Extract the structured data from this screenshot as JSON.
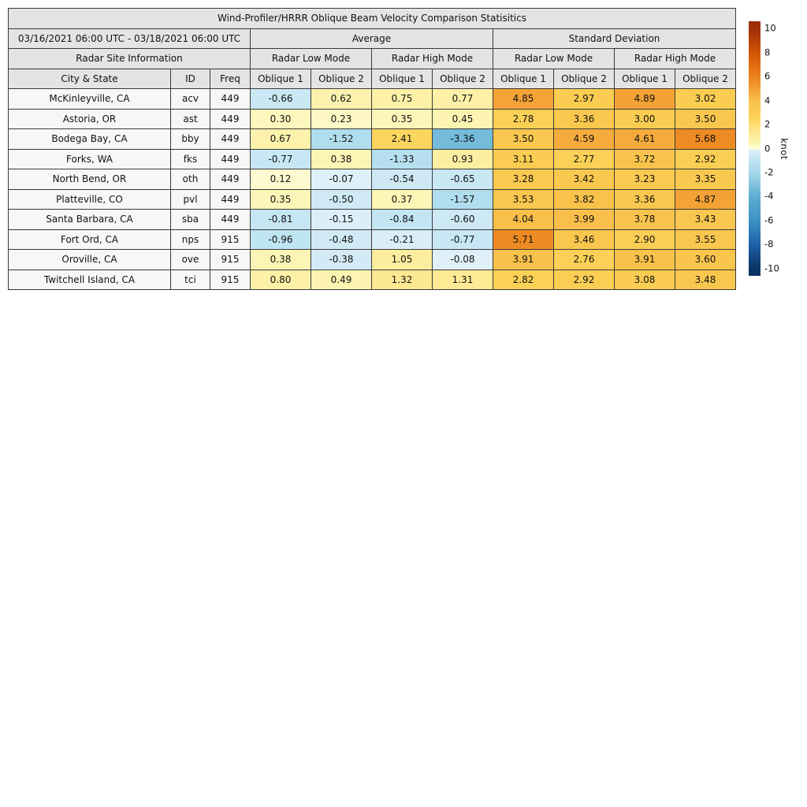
{
  "colors": {
    "header_bg": "#e4e4e4",
    "label_bg": "#f7f7f7",
    "border": "#3a3a3a",
    "positive_max": "#9e2e06",
    "negative_max": "#0b3464",
    "zero_positive": "#fffcdc",
    "zero_negative": "#e2f2f9"
  },
  "chart_data": {
    "type": "heatmap-table",
    "title": "Wind-Profiler/HRRR Oblique Beam Velocity Comparison Statisitics",
    "date_range": "03/16/2021 06:00 UTC - 03/18/2021 06:00 UTC",
    "section_headers": {
      "site_info": "Radar Site Information",
      "average": "Average",
      "std_dev": "Standard Deviation"
    },
    "mode_headers": [
      "Radar Low Mode",
      "Radar High Mode",
      "Radar Low Mode",
      "Radar High Mode"
    ],
    "column_headers": {
      "city": "City & State",
      "id": "ID",
      "freq": "Freq"
    },
    "oblique_headers": [
      "Oblique 1",
      "Oblique 2"
    ],
    "value_columns": [
      "Average Radar Low Mode Oblique 1",
      "Average Radar Low Mode Oblique 2",
      "Average Radar High Mode Oblique 1",
      "Average Radar High Mode Oblique 2",
      "Standard Deviation Radar Low Mode Oblique 1",
      "Standard Deviation Radar Low Mode Oblique 2",
      "Standard Deviation Radar High Mode Oblique 1",
      "Standard Deviation Radar High Mode Oblique 2"
    ],
    "units": "knot",
    "rows": [
      {
        "city": "McKinleyville, CA",
        "id": "acv",
        "freq": 449,
        "values": [
          -0.66,
          0.62,
          0.75,
          0.77,
          4.85,
          2.97,
          4.89,
          3.02
        ]
      },
      {
        "city": "Astoria, OR",
        "id": "ast",
        "freq": 449,
        "values": [
          0.3,
          0.23,
          0.35,
          0.45,
          2.78,
          3.36,
          3.0,
          3.5
        ]
      },
      {
        "city": "Bodega Bay, CA",
        "id": "bby",
        "freq": 449,
        "values": [
          0.67,
          -1.52,
          2.41,
          -3.36,
          3.5,
          4.59,
          4.61,
          5.68
        ]
      },
      {
        "city": "Forks, WA",
        "id": "fks",
        "freq": 449,
        "values": [
          -0.77,
          0.38,
          -1.33,
          0.93,
          3.11,
          2.77,
          3.72,
          2.92
        ]
      },
      {
        "city": "North Bend, OR",
        "id": "oth",
        "freq": 449,
        "values": [
          0.12,
          -0.07,
          -0.54,
          -0.65,
          3.28,
          3.42,
          3.23,
          3.35
        ]
      },
      {
        "city": "Platteville, CO",
        "id": "pvl",
        "freq": 449,
        "values": [
          0.35,
          -0.5,
          0.37,
          -1.57,
          3.53,
          3.82,
          3.36,
          4.87
        ]
      },
      {
        "city": "Santa Barbara, CA",
        "id": "sba",
        "freq": 449,
        "values": [
          -0.81,
          -0.15,
          -0.84,
          -0.6,
          4.04,
          3.99,
          3.78,
          3.43
        ]
      },
      {
        "city": "Fort Ord, CA",
        "id": "nps",
        "freq": 915,
        "values": [
          -0.96,
          -0.48,
          -0.21,
          -0.77,
          5.71,
          3.46,
          2.9,
          3.55
        ]
      },
      {
        "city": "Oroville, CA",
        "id": "ove",
        "freq": 915,
        "values": [
          0.38,
          -0.38,
          1.05,
          -0.08,
          3.91,
          2.76,
          3.91,
          3.6
        ]
      },
      {
        "city": "Twitchell Island, CA",
        "id": "tci",
        "freq": 915,
        "values": [
          0.8,
          0.49,
          1.32,
          1.31,
          2.82,
          2.92,
          3.08,
          3.48
        ]
      }
    ],
    "colorbar": {
      "label": "knot",
      "ticks": [
        10,
        8,
        6,
        4,
        2,
        0,
        -2,
        -4,
        -6,
        -8,
        -10
      ],
      "vmin": -10,
      "vmax": 10,
      "neg_stops": [
        [
          -10,
          "#0b3464"
        ],
        [
          -8,
          "#1d61a7"
        ],
        [
          -6,
          "#3c92c6"
        ],
        [
          -4,
          "#5facd0"
        ],
        [
          -3.4,
          "#74bad9"
        ],
        [
          -2,
          "#a5d9eb"
        ],
        [
          -1,
          "#bee4f2"
        ],
        [
          -0.3,
          "#d6ecf6"
        ],
        [
          0,
          "#e2f2f9"
        ]
      ],
      "pos_stops": [
        [
          0,
          "#fffcdc"
        ],
        [
          0.4,
          "#fdf5b4"
        ],
        [
          1,
          "#fdeea0"
        ],
        [
          1.5,
          "#fee68c"
        ],
        [
          2.5,
          "#fbd45a"
        ],
        [
          3,
          "#facd52"
        ],
        [
          4,
          "#f8c04a"
        ],
        [
          5,
          "#f39e32"
        ],
        [
          6,
          "#ec821c"
        ],
        [
          8,
          "#d25405"
        ],
        [
          10,
          "#9e2e06"
        ]
      ]
    }
  }
}
